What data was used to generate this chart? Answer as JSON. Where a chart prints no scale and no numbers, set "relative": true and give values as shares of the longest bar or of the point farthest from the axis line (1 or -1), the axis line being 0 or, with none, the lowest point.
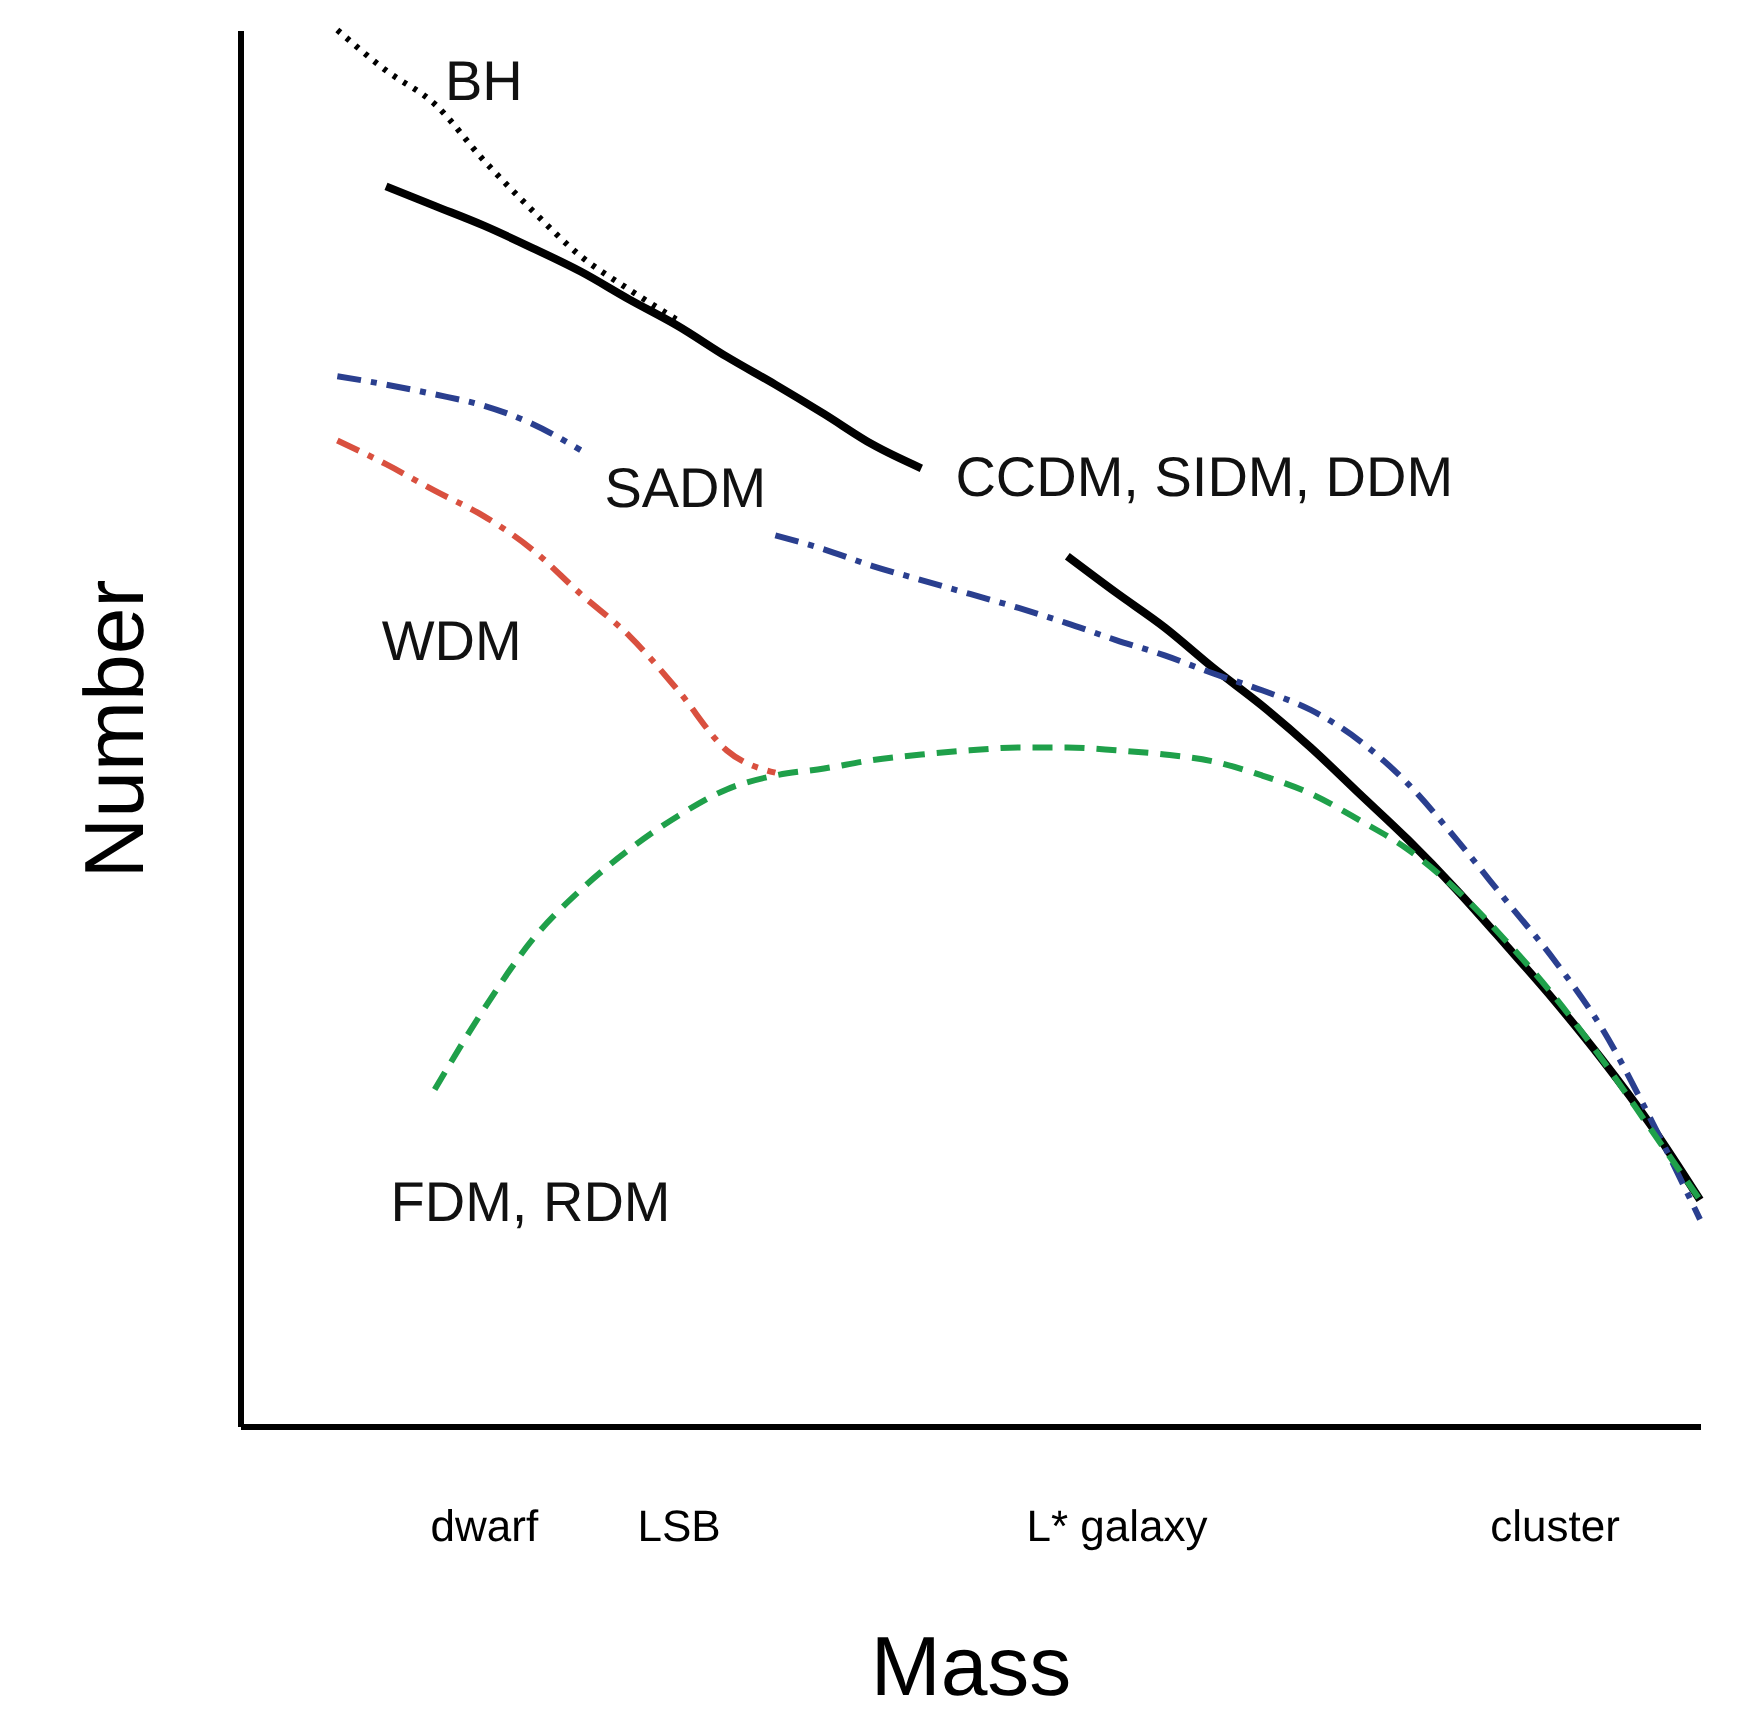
{
  "chart_data": {
    "type": "line",
    "relative": true,
    "xlabel": "Mass",
    "ylabel": "Number",
    "tick_labels": "x",
    "grid": false,
    "marker": "none",
    "categories": [
      null,
      null,
      null,
      null,
      null,
      "dwarf",
      null,
      null,
      null,
      "LSB",
      null,
      null,
      null,
      null,
      null,
      null,
      null,
      null,
      "L* galaxy",
      null,
      null,
      null,
      null,
      null,
      null,
      null,
      null,
      "cluster",
      null,
      null,
      null
    ],
    "series": [
      {
        "name": "BH",
        "color": "#000000",
        "line_style": "dotted",
        "values": [
          null,
          null,
          1.0,
          0.971,
          0.947,
          0.907,
          0.871,
          0.838,
          0.814,
          0.792,
          null,
          null,
          null,
          null,
          null,
          null,
          null,
          null,
          null,
          null,
          null,
          null,
          null,
          null,
          null,
          null,
          null,
          null,
          null,
          null,
          null
        ]
      },
      {
        "name": "CCDM, SIDM, DDM",
        "color": "#000000",
        "line_style": "solid",
        "values": [
          null,
          null,
          null,
          0.888,
          0.874,
          0.86,
          0.844,
          0.827,
          0.807,
          0.788,
          0.766,
          0.746,
          0.725,
          0.703,
          0.686,
          null,
          null,
          0.623,
          0.597,
          0.572,
          0.543,
          0.516,
          0.486,
          0.453,
          0.42,
          0.384,
          0.345,
          0.305,
          0.262,
          0.215,
          0.162
        ]
      },
      {
        "name": "SADM",
        "color": "#2a3f8f",
        "line_style": "dashdot",
        "values": [
          null,
          null,
          0.752,
          0.746,
          0.739,
          0.731,
          0.718,
          0.699,
          null,
          null,
          null,
          0.638,
          0.628,
          0.616,
          0.606,
          0.596,
          0.586,
          0.575,
          0.563,
          0.552,
          0.539,
          0.527,
          0.513,
          0.491,
          0.46,
          0.42,
          0.377,
          0.334,
          0.284,
          0.219,
          0.148
        ]
      },
      {
        "name": "WDM",
        "color": "#d9503f",
        "line_style": "dashdot",
        "values": [
          null,
          null,
          0.706,
          0.689,
          0.67,
          0.652,
          0.628,
          0.596,
          0.566,
          0.527,
          0.484,
          0.468,
          null,
          null,
          null,
          null,
          null,
          null,
          null,
          null,
          null,
          null,
          null,
          null,
          null,
          null,
          null,
          null,
          null,
          null,
          null
        ]
      },
      {
        "name": "FDM, RDM",
        "color": "#1fa04a",
        "line_style": "dashed",
        "values": [
          null,
          null,
          null,
          null,
          0.241,
          0.298,
          0.348,
          0.384,
          0.413,
          0.437,
          0.456,
          0.466,
          0.471,
          0.477,
          0.481,
          0.484,
          0.486,
          0.486,
          0.484,
          0.481,
          0.476,
          0.466,
          0.453,
          0.434,
          0.413,
          0.384,
          0.348,
          0.308,
          0.262,
          0.212,
          0.162
        ]
      }
    ]
  }
}
